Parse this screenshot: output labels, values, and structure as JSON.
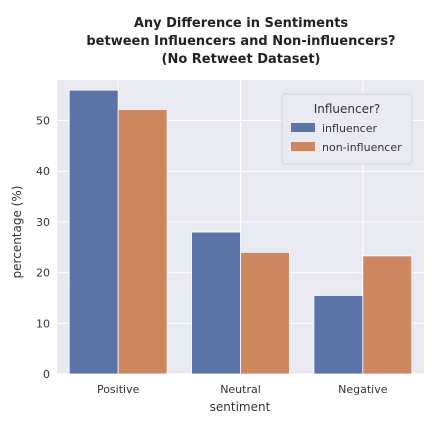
{
  "chart_data": {
    "type": "bar",
    "title_lines": [
      "Any Difference in Sentiments",
      "between Influencers and Non-influencers?",
      "(No Retweet Dataset)"
    ],
    "xlabel": "sentiment",
    "ylabel": "percentage (%)",
    "categories": [
      "Positive",
      "Neutral",
      "Negative"
    ],
    "series": [
      {
        "name": "influencer",
        "values": [
          56.0,
          28.0,
          15.5
        ],
        "color": "#5a74a8"
      },
      {
        "name": "non-influencer",
        "values": [
          52.2,
          24.0,
          23.3
        ],
        "color": "#cc8660"
      }
    ],
    "ylim": [
      0,
      58
    ],
    "yticks": [
      0,
      10,
      20,
      30,
      40,
      50
    ],
    "grid": true,
    "plot_background": "#e9e9f2",
    "grid_color": "#ffffff",
    "legend": {
      "title": "Influencer?",
      "placement": "top-right"
    }
  }
}
